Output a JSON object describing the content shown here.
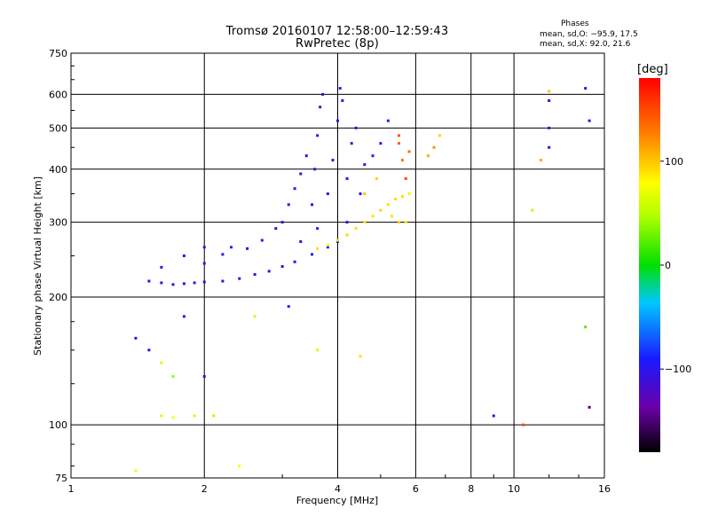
{
  "header": {
    "title_line1": "Tromsø 20160107 12:58:00–12:59:43",
    "title_line2": "RwPretec (8p)",
    "stats_heading": "Phases",
    "stats_o": "mean, sd,O: −95.9, 17.5",
    "stats_x": "mean, sd,X:  92.0, 21.6"
  },
  "colorbar": {
    "label": "[deg]",
    "range": [
      -180,
      180
    ],
    "ticks": [
      {
        "value": 100,
        "label": "100"
      },
      {
        "value": 0,
        "label": "0"
      },
      {
        "value": -100,
        "label": "−100"
      }
    ]
  },
  "chart_data": {
    "type": "scatter",
    "xlabel": "Frequency [MHz]",
    "ylabel": "Stationary phase Virtual Height [km]",
    "xscale": "log",
    "yscale": "log",
    "xlim": [
      1,
      16
    ],
    "ylim": [
      75,
      750
    ],
    "grid": true,
    "x_ticks": [
      {
        "value": 1,
        "label": "1"
      },
      {
        "value": 2,
        "label": "2"
      },
      {
        "value": 4,
        "label": "4"
      },
      {
        "value": 6,
        "label": "6"
      },
      {
        "value": 8,
        "label": "8"
      },
      {
        "value": 10,
        "label": "10"
      },
      {
        "value": 16,
        "label": "16"
      }
    ],
    "y_ticks": [
      {
        "value": 75,
        "label": "75"
      },
      {
        "value": 100,
        "label": "100"
      },
      {
        "value": 200,
        "label": "200"
      },
      {
        "value": 300,
        "label": "300"
      },
      {
        "value": 400,
        "label": "400"
      },
      {
        "value": 500,
        "label": "500"
      },
      {
        "value": 600,
        "label": "600"
      },
      {
        "value": 750,
        "label": "750"
      }
    ],
    "series": [
      {
        "values": [
          [
            1.5,
            218,
            -100
          ],
          [
            1.6,
            216,
            -105
          ],
          [
            1.7,
            214,
            -110
          ],
          [
            1.8,
            215,
            -100
          ],
          [
            1.9,
            216,
            -95
          ],
          [
            2.0,
            217,
            -100
          ],
          [
            2.2,
            218,
            -105
          ],
          [
            2.4,
            221,
            -100
          ],
          [
            2.6,
            226,
            -95
          ],
          [
            2.8,
            230,
            -100
          ],
          [
            3.0,
            236,
            -105
          ],
          [
            3.2,
            242,
            -100
          ],
          [
            3.5,
            252,
            -95
          ],
          [
            3.8,
            262,
            -100
          ],
          [
            4.0,
            270,
            -90
          ],
          [
            1.6,
            235,
            -100
          ],
          [
            1.8,
            250,
            -95
          ],
          [
            2.0,
            240,
            -90
          ],
          [
            2.0,
            262,
            -105
          ],
          [
            2.2,
            252,
            -100
          ],
          [
            2.3,
            262,
            -85
          ],
          [
            2.5,
            260,
            -100
          ],
          [
            2.7,
            272,
            -95
          ],
          [
            2.9,
            290,
            -110
          ],
          [
            3.0,
            300,
            -100
          ],
          [
            3.1,
            330,
            -105
          ],
          [
            3.2,
            360,
            -95
          ],
          [
            3.3,
            390,
            -100
          ],
          [
            3.4,
            430,
            -110
          ],
          [
            3.5,
            330,
            -100
          ],
          [
            3.55,
            400,
            -105
          ],
          [
            3.6,
            480,
            -100
          ],
          [
            3.65,
            560,
            -95
          ],
          [
            3.7,
            600,
            -110
          ],
          [
            3.8,
            350,
            -100
          ],
          [
            3.9,
            420,
            -105
          ],
          [
            4.0,
            520,
            -100
          ],
          [
            4.05,
            620,
            -95
          ],
          [
            4.1,
            580,
            -110
          ],
          [
            4.2,
            380,
            -100
          ],
          [
            4.3,
            460,
            -105
          ],
          [
            4.4,
            500,
            -100
          ],
          [
            4.5,
            350,
            -95
          ],
          [
            4.6,
            410,
            -100
          ],
          [
            4.8,
            430,
            -90
          ],
          [
            5.0,
            460,
            -95
          ],
          [
            5.2,
            520,
            -85
          ],
          [
            3.3,
            270,
            -100
          ],
          [
            3.6,
            290,
            -95
          ],
          [
            4.2,
            300,
            -105
          ],
          [
            3.6,
            260,
            90
          ],
          [
            3.8,
            265,
            85
          ],
          [
            4.0,
            272,
            90
          ],
          [
            4.2,
            280,
            95
          ],
          [
            4.4,
            290,
            90
          ],
          [
            4.6,
            300,
            85
          ],
          [
            4.8,
            310,
            90
          ],
          [
            5.0,
            320,
            95
          ],
          [
            5.2,
            330,
            90
          ],
          [
            5.4,
            340,
            95
          ],
          [
            5.6,
            345,
            90
          ],
          [
            5.8,
            350,
            85
          ],
          [
            4.6,
            350,
            100
          ],
          [
            4.9,
            380,
            95
          ],
          [
            5.3,
            310,
            90
          ],
          [
            5.5,
            300,
            95
          ],
          [
            5.7,
            300,
            85
          ],
          [
            5.5,
            460,
            140
          ],
          [
            5.6,
            420,
            130
          ],
          [
            5.7,
            380,
            150
          ],
          [
            5.5,
            480,
            145
          ],
          [
            5.8,
            440,
            135
          ],
          [
            6.4,
            430,
            110
          ],
          [
            6.6,
            450,
            120
          ],
          [
            6.8,
            480,
            95
          ],
          [
            1.4,
            160,
            -100
          ],
          [
            1.5,
            150,
            -95
          ],
          [
            1.6,
            140,
            60
          ],
          [
            1.7,
            130,
            40
          ],
          [
            1.6,
            105,
            60
          ],
          [
            1.7,
            104,
            80
          ],
          [
            1.9,
            105,
            60
          ],
          [
            2.1,
            105,
            50
          ],
          [
            1.8,
            180,
            -100
          ],
          [
            2.6,
            180,
            60
          ],
          [
            2.0,
            130,
            -110
          ],
          [
            3.1,
            190,
            -100
          ],
          [
            3.6,
            150,
            60
          ],
          [
            4.5,
            145,
            90
          ],
          [
            12.0,
            610,
            100
          ],
          [
            12.0,
            580,
            -100
          ],
          [
            12.0,
            500,
            -95
          ],
          [
            12.0,
            450,
            -120
          ],
          [
            11.5,
            420,
            110
          ],
          [
            11.0,
            320,
            50
          ],
          [
            14.5,
            620,
            -110
          ],
          [
            14.8,
            520,
            -100
          ],
          [
            14.5,
            170,
            20
          ],
          [
            14.8,
            110,
            -150
          ],
          [
            9.0,
            105,
            -100
          ],
          [
            10.5,
            100,
            150
          ],
          [
            2.4,
            80,
            80
          ],
          [
            1.4,
            78,
            70
          ]
        ]
      }
    ]
  }
}
